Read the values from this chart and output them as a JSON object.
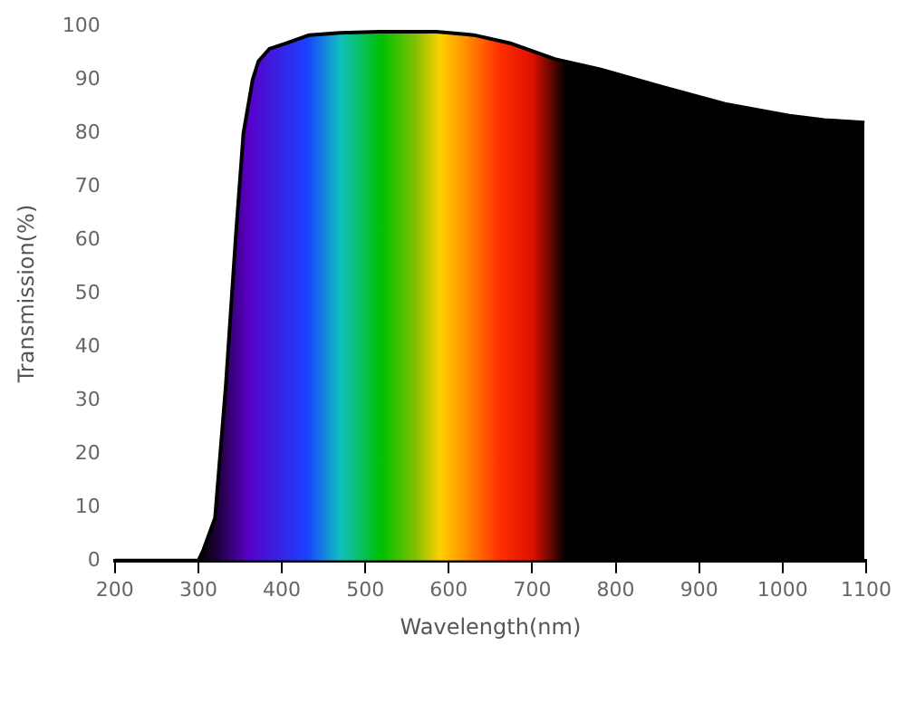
{
  "chart_data": {
    "type": "area",
    "xlabel": "Wavelength(nm)",
    "ylabel": "Transmission(%)",
    "x": [
      200,
      300,
      306,
      320,
      333,
      345,
      354,
      365,
      372,
      385,
      404,
      433,
      470,
      517,
      585,
      630,
      675,
      727,
      781,
      856,
      931,
      1008,
      1050,
      1098
    ],
    "series": [
      {
        "color": "#000000",
        "values": [
          0,
          0,
          2,
          8,
          33,
          61,
          80,
          90,
          93.5,
          95.8,
          96.8,
          98.4,
          98.8,
          99,
          99,
          98.4,
          96.8,
          93.9,
          92,
          88.7,
          85.5,
          83.3,
          82.5,
          82
        ]
      }
    ],
    "xlim": [
      200,
      1100
    ],
    "xticks": [
      200,
      300,
      400,
      500,
      600,
      700,
      800,
      900,
      1000,
      1100
    ],
    "ylim": [
      0,
      100
    ],
    "yticks": [
      0,
      10,
      20,
      30,
      40,
      50,
      60,
      70,
      80,
      90,
      100
    ],
    "grid": false,
    "legend": false,
    "marker": "none",
    "line_style": "solid"
  }
}
